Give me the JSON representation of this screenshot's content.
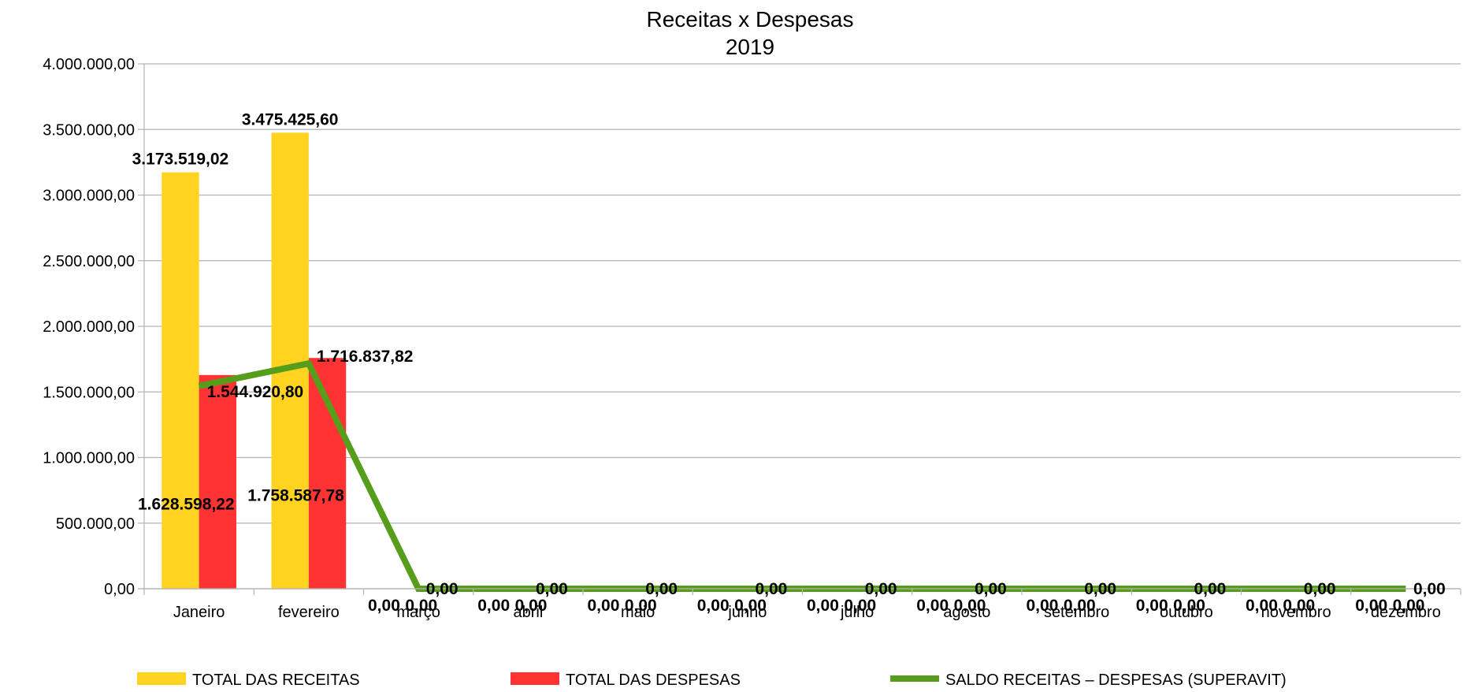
{
  "chart_data": {
    "type": "bar",
    "title": "Receitas x Despesas",
    "subtitle": "2019",
    "categories": [
      "Janeiro",
      "fevereiro",
      "março",
      "abril",
      "maio",
      "junho",
      "julho",
      "agosto",
      "setembro",
      "outubro",
      "novembro",
      "dezembro"
    ],
    "ylim": [
      0,
      4000000
    ],
    "yticks": [
      0,
      500000,
      1000000,
      1500000,
      2000000,
      2500000,
      3000000,
      3500000,
      4000000
    ],
    "ytick_labels": [
      "0,00",
      "500.000,00",
      "1.000.000,00",
      "1.500.000,00",
      "2.000.000,00",
      "2.500.000,00",
      "3.000.000,00",
      "3.500.000,00",
      "4.000.000,00"
    ],
    "grid": true,
    "legend_position": "bottom",
    "series": [
      {
        "name": "TOTAL DAS RECEITAS",
        "kind": "bar",
        "color": "#ffd320",
        "values": [
          3173519.02,
          3475425.6,
          0,
          0,
          0,
          0,
          0,
          0,
          0,
          0,
          0,
          0
        ],
        "labels": [
          "3.173.519,02",
          "3.475.425,60",
          "0,00",
          "0,00",
          "0,00",
          "0,00",
          "0,00",
          "0,00",
          "0,00",
          "0,00",
          "0,00",
          "0,00"
        ]
      },
      {
        "name": "TOTAL DAS DESPESAS",
        "kind": "bar",
        "color": "#ff3333",
        "values": [
          1628598.22,
          1758587.78,
          0,
          0,
          0,
          0,
          0,
          0,
          0,
          0,
          0,
          0
        ],
        "labels": [
          "1.628.598,22",
          "1.758.587,78",
          "0,00",
          "0,00",
          "0,00",
          "0,00",
          "0,00",
          "0,00",
          "0,00",
          "0,00",
          "0,00",
          "0,00"
        ]
      },
      {
        "name": "SALDO RECEITAS – DESPESAS (SUPERAVIT)",
        "kind": "line",
        "color": "#579d1c",
        "values": [
          1544920.8,
          1716837.82,
          0,
          0,
          0,
          0,
          0,
          0,
          0,
          0,
          0,
          0
        ],
        "labels": [
          "1.544.920,80",
          "1.716.837,82",
          "0,00",
          "0,00",
          "0,00",
          "0,00",
          "0,00",
          "0,00",
          "0,00",
          "0,00",
          "0,00",
          "0,00"
        ]
      }
    ]
  }
}
